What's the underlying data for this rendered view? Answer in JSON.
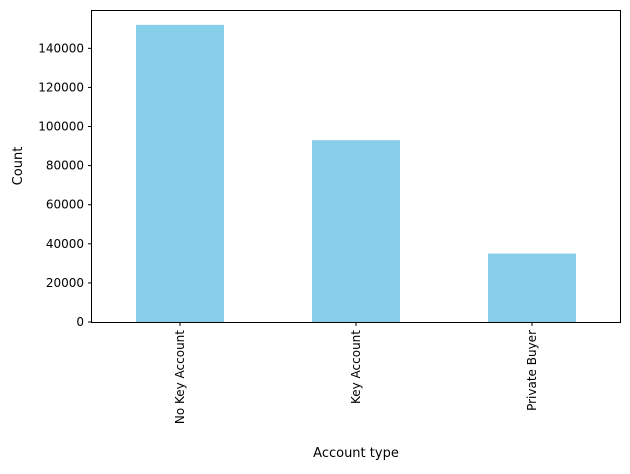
{
  "chart_data": {
    "type": "bar",
    "title": "",
    "xlabel": "Account type",
    "ylabel": "Count",
    "categories": [
      "No Key Account",
      "Key Account",
      "Private Buyer"
    ],
    "values": [
      152000,
      93000,
      35000
    ],
    "ylim": [
      0,
      159600
    ],
    "yticks": [
      0,
      20000,
      40000,
      60000,
      80000,
      100000,
      120000,
      140000
    ],
    "grid": false,
    "legend": "none",
    "bar_color": "#87ceeb",
    "tick_label_rotation": "vertical"
  }
}
